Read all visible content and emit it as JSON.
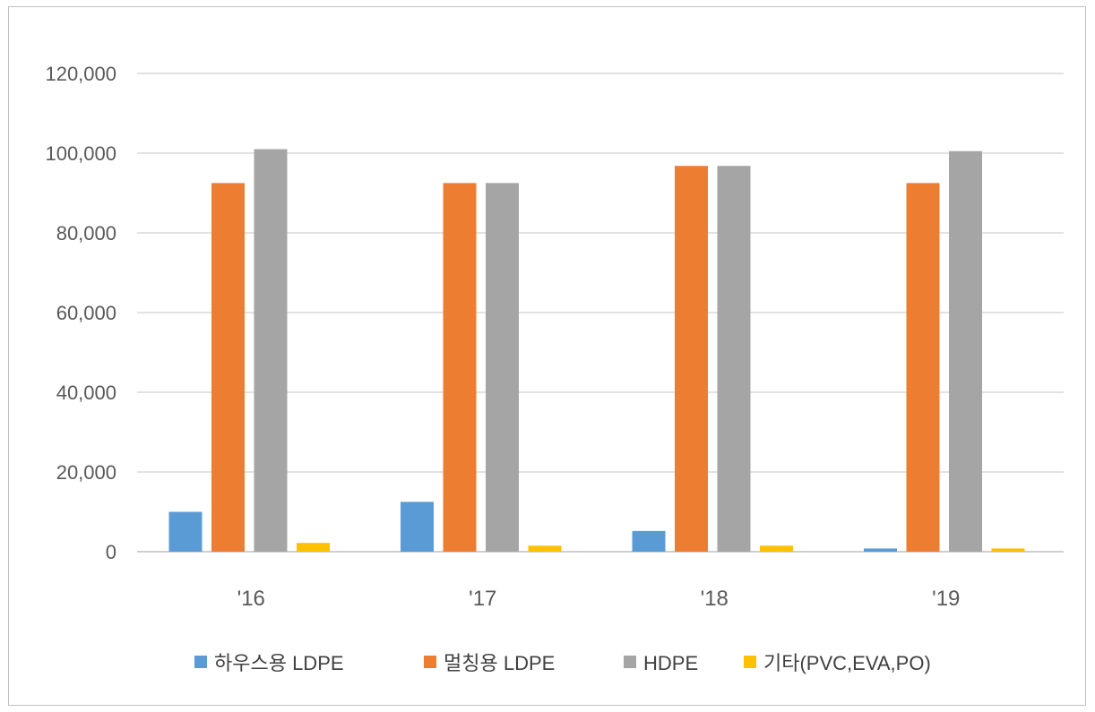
{
  "chart_data": {
    "type": "bar",
    "title": "",
    "xlabel": "",
    "ylabel": "",
    "categories": [
      "'16",
      "'17",
      "'18",
      "'19"
    ],
    "ylim": [
      0,
      120000
    ],
    "yticks": [
      "0",
      "20,000",
      "40,000",
      "60,000",
      "80,000",
      "100,000",
      "120,000"
    ],
    "ytick_values": [
      0,
      20000,
      40000,
      60000,
      80000,
      100000,
      120000
    ],
    "grid": true,
    "legend_position": "bottom",
    "series": [
      {
        "name": "하우스용 LDPE",
        "color": "#5b9bd5",
        "values": [
          10000,
          12500,
          5200,
          800
        ]
      },
      {
        "name": "멀칭용 LDPE",
        "color": "#ed7d31",
        "values": [
          92500,
          92500,
          96800,
          92500
        ]
      },
      {
        "name": "HDPE",
        "color": "#a5a5a5",
        "values": [
          101000,
          92500,
          96800,
          100500
        ]
      },
      {
        "name": "기타(PVC,EVA,PO)",
        "color": "#ffc000",
        "values": [
          2200,
          1500,
          1500,
          800
        ]
      }
    ]
  }
}
